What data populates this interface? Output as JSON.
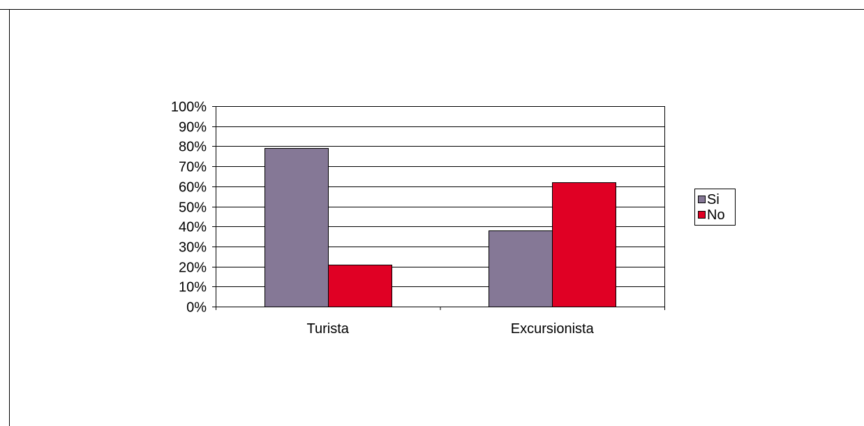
{
  "chart_data": {
    "type": "bar",
    "categories": [
      "Turista",
      "Excursionista"
    ],
    "series": [
      {
        "name": "Si",
        "values": [
          79,
          38
        ],
        "color": "#857896"
      },
      {
        "name": "No",
        "values": [
          21,
          62
        ],
        "color": "#e00024"
      }
    ],
    "ylim": [
      0,
      100
    ],
    "ytick_step": 10,
    "ytick_labels": [
      "0%",
      "10%",
      "20%",
      "30%",
      "40%",
      "50%",
      "60%",
      "70%",
      "80%",
      "90%",
      "100%"
    ],
    "grid": true,
    "legend_position": "right"
  }
}
